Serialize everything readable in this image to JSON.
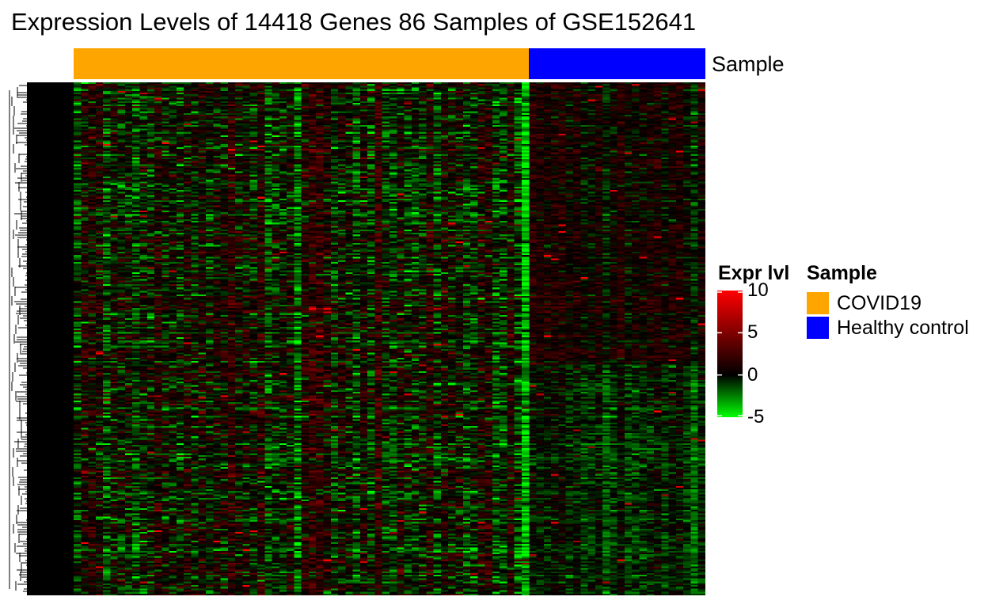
{
  "chart_data": {
    "type": "heatmap",
    "title": "Expression Levels of 14418 Genes 86 Samples of GSE152641",
    "n_genes": 14418,
    "n_samples": 86,
    "annotation": {
      "label": "Sample",
      "groups": [
        {
          "name": "COVID19",
          "count": 62,
          "color": "#FFA500"
        },
        {
          "name": "Healthy control",
          "count": 24,
          "color": "#0000FF"
        }
      ]
    },
    "color_scale": {
      "title": "Expr lvl",
      "min": -5,
      "max": 10,
      "low_color": "#00FF00",
      "mid_color": "#000000",
      "high_color": "#FF0000",
      "ticks": [
        10,
        5,
        0,
        -5
      ]
    },
    "row_dendrogram": true,
    "column_dendrogram": false,
    "legend_position": "right"
  }
}
